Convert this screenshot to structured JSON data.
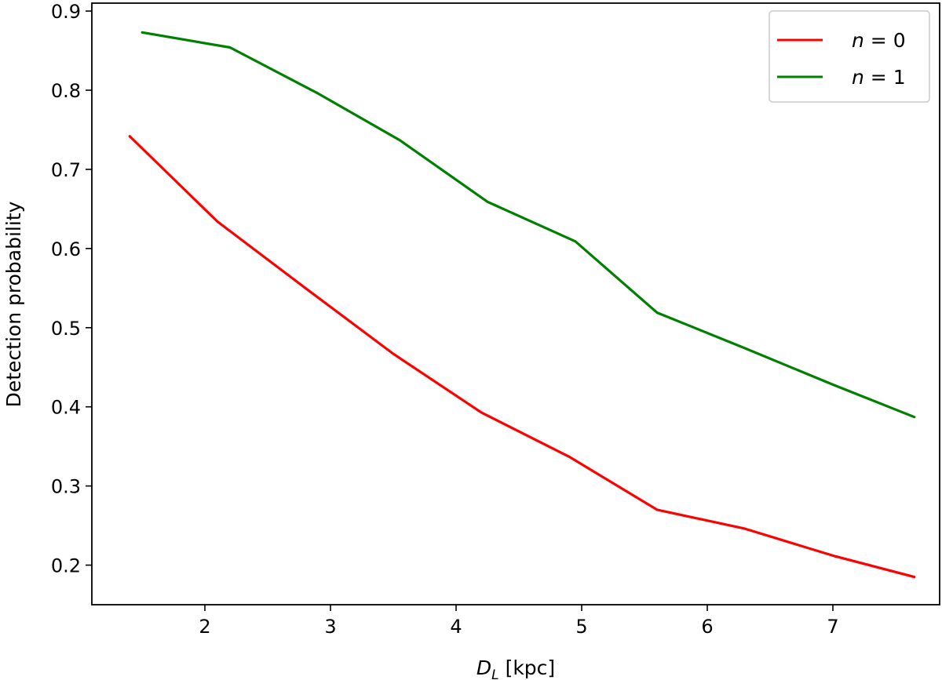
{
  "chart_data": {
    "type": "line",
    "title": "",
    "xlabel": "D_L [kpc]",
    "xlabel_main": "D",
    "xlabel_sub": "L",
    "xlabel_unit": "[kpc]",
    "ylabel": "Detection probability",
    "xlim": [
      1.1,
      7.85
    ],
    "ylim": [
      0.15,
      0.91
    ],
    "xticks": [
      2,
      3,
      4,
      5,
      6,
      7
    ],
    "yticks": [
      0.2,
      0.3,
      0.4,
      0.5,
      0.6,
      0.7,
      0.8,
      0.9
    ],
    "grid": false,
    "legend_position": "top-right",
    "series": [
      {
        "name": "n = 0",
        "legend_var": "n",
        "legend_rest": " = 0",
        "color": "#ff0000",
        "x": [
          1.4,
          2.1,
          2.8,
          3.5,
          4.2,
          4.9,
          5.6,
          6.3,
          7.0,
          7.65
        ],
        "y": [
          0.742,
          0.634,
          0.55,
          0.467,
          0.393,
          0.337,
          0.27,
          0.246,
          0.212,
          0.185
        ]
      },
      {
        "name": "n = 1",
        "legend_var": "n",
        "legend_rest": " = 1",
        "color": "#008000",
        "x": [
          1.5,
          2.2,
          2.9,
          3.55,
          4.25,
          4.95,
          5.6,
          6.3,
          7.0,
          7.65
        ],
        "y": [
          0.873,
          0.854,
          0.796,
          0.737,
          0.659,
          0.609,
          0.519,
          0.474,
          0.428,
          0.387
        ]
      }
    ]
  }
}
